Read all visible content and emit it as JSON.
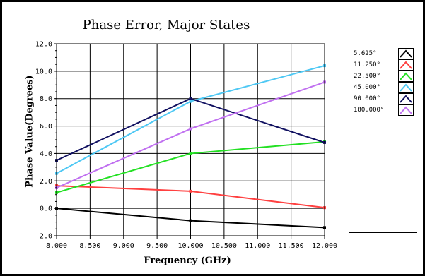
{
  "chart_data": {
    "type": "line",
    "title": "Phase Error, Major States",
    "xlabel": "Frequency (GHz)",
    "ylabel": "Phase Value(Degrees)",
    "x": [
      8.0,
      10.0,
      12.0
    ],
    "xlim": [
      8.0,
      12.0
    ],
    "ylim": [
      -2.0,
      12.0
    ],
    "xticks": [
      "8.000",
      "8.500",
      "9.000",
      "9.500",
      "10.000",
      "10.500",
      "11.000",
      "11.500",
      "12.000"
    ],
    "yticks": [
      "-2.0",
      "0.0",
      "2.0",
      "4.0",
      "6.0",
      "8.0",
      "10.0",
      "12.0"
    ],
    "grid": true,
    "legend_position": "right",
    "series": [
      {
        "name": "5.625°",
        "color": "#000000",
        "values": [
          0.0,
          -0.9,
          -1.4
        ]
      },
      {
        "name": "11.250°",
        "color": "#ff4040",
        "values": [
          1.65,
          1.25,
          0.05
        ]
      },
      {
        "name": "22.500°",
        "color": "#22e022",
        "values": [
          1.15,
          4.0,
          4.85
        ]
      },
      {
        "name": "45.000°",
        "color": "#4ec8f4",
        "values": [
          2.55,
          7.8,
          10.4
        ]
      },
      {
        "name": "90.000°",
        "color": "#101060",
        "values": [
          3.5,
          8.0,
          4.8
        ]
      },
      {
        "name": "180.000°",
        "color": "#c070f0",
        "values": [
          1.5,
          5.8,
          9.2
        ]
      }
    ]
  }
}
